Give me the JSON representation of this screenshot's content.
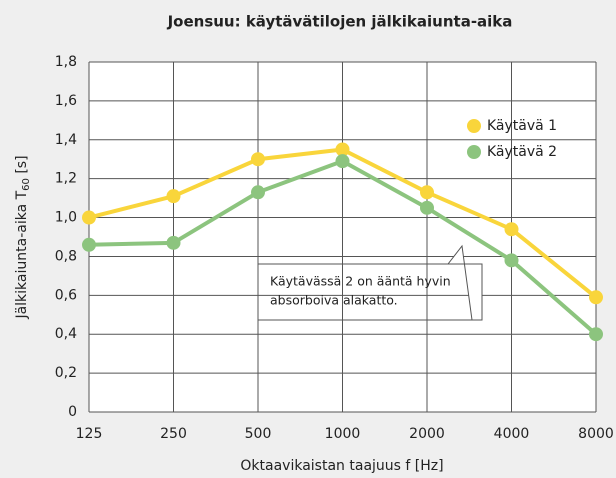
{
  "chart_data": {
    "type": "line",
    "title": "Joensuu: käytävätilojen jälkikaiunta-aika",
    "xlabel": "Oktaavikaistan taajuus f [Hz]",
    "ylabel": {
      "text": "Jälkikaiunta-aika T",
      "subscript": "60",
      "suffix": " [s]"
    },
    "categories": [
      "125",
      "250",
      "500",
      "1000",
      "2000",
      "4000",
      "8000"
    ],
    "series": [
      {
        "name": "Käytävä 1",
        "color": "#f9d53b",
        "values": [
          1.0,
          1.11,
          1.3,
          1.35,
          1.13,
          0.94,
          0.59
        ]
      },
      {
        "name": "Käytävä 2",
        "color": "#8cc47e",
        "values": [
          0.86,
          0.87,
          1.13,
          1.29,
          1.05,
          0.78,
          0.4
        ]
      }
    ],
    "ylim": [
      0,
      1.8
    ],
    "yticks": [
      0,
      {
        "value": 0.2,
        "label": "0,2"
      },
      {
        "value": 0.4,
        "label": "0,4"
      },
      {
        "value": 0.6,
        "label": "0,6"
      },
      {
        "value": 0.8,
        "label": "0,8"
      },
      {
        "value": 1.0,
        "label": "1,0"
      },
      {
        "value": 1.2,
        "label": "1,2"
      },
      {
        "value": 1.4,
        "label": "1,4"
      },
      {
        "value": 1.6,
        "label": "1,6"
      },
      {
        "value": 1.8,
        "label": "1,8"
      }
    ],
    "grid": true,
    "legend": "upper right",
    "annotation": [
      "Käytävässä 2 on ääntä hyvin",
      "absorboiva alakatto."
    ]
  }
}
